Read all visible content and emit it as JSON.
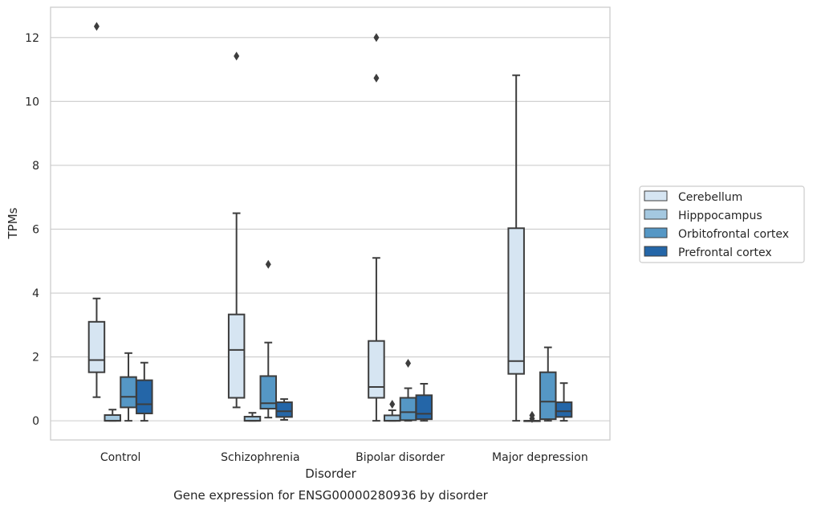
{
  "chart_data": {
    "type": "box",
    "title": "Gene expression for ENSG00000280936 by disorder",
    "xlabel": "Disorder",
    "ylabel": "TPMs",
    "ylim": [
      -0.6,
      12.95
    ],
    "yticks": [
      0,
      2,
      4,
      6,
      8,
      10,
      12
    ],
    "grid": "horizontal",
    "legend_position": "right",
    "categories": [
      "Control",
      "Schizophrenia",
      "Bipolar disorder",
      "Major depression"
    ],
    "series": [
      {
        "name": "Cerebellum",
        "color": "#d6e5f2",
        "boxes": [
          {
            "whisker_low": 0.74,
            "q1": 1.52,
            "median": 1.9,
            "q3": 3.1,
            "whisker_high": 3.83,
            "outliers": [
              12.35
            ]
          },
          {
            "whisker_low": 0.42,
            "q1": 0.72,
            "median": 2.22,
            "q3": 3.33,
            "whisker_high": 6.5,
            "outliers": [
              11.42
            ]
          },
          {
            "whisker_low": 0.0,
            "q1": 0.72,
            "median": 1.06,
            "q3": 2.5,
            "whisker_high": 5.1,
            "outliers": [
              12.0,
              10.73
            ]
          },
          {
            "whisker_low": 0.0,
            "q1": 1.47,
            "median": 1.87,
            "q3": 6.03,
            "whisker_high": 10.82,
            "outliers": []
          }
        ]
      },
      {
        "name": "Hipppocampus",
        "color": "#a4c8e0",
        "boxes": [
          {
            "whisker_low": 0.0,
            "q1": 0.0,
            "median": 0.0,
            "q3": 0.18,
            "whisker_high": 0.35,
            "outliers": []
          },
          {
            "whisker_low": 0.0,
            "q1": 0.0,
            "median": 0.0,
            "q3": 0.13,
            "whisker_high": 0.25,
            "outliers": []
          },
          {
            "whisker_low": 0.0,
            "q1": 0.0,
            "median": 0.0,
            "q3": 0.17,
            "whisker_high": 0.33,
            "outliers": [
              0.52
            ]
          },
          {
            "whisker_low": 0.0,
            "q1": 0.0,
            "median": 0.0,
            "q3": 0.0,
            "whisker_high": 0.0,
            "outliers": [
              0.17,
              0.07
            ]
          }
        ]
      },
      {
        "name": "Orbitofrontal cortex",
        "color": "#5597c5",
        "boxes": [
          {
            "whisker_low": 0.0,
            "q1": 0.42,
            "median": 0.75,
            "q3": 1.37,
            "whisker_high": 2.12,
            "outliers": []
          },
          {
            "whisker_low": 0.1,
            "q1": 0.38,
            "median": 0.55,
            "q3": 1.4,
            "whisker_high": 2.45,
            "outliers": [
              4.9
            ]
          },
          {
            "whisker_low": 0.0,
            "q1": 0.02,
            "median": 0.27,
            "q3": 0.72,
            "whisker_high": 1.02,
            "outliers": [
              1.8
            ]
          },
          {
            "whisker_low": 0.0,
            "q1": 0.05,
            "median": 0.6,
            "q3": 1.52,
            "whisker_high": 2.3,
            "outliers": []
          }
        ]
      },
      {
        "name": "Prefrontal cortex",
        "color": "#2466a8",
        "boxes": [
          {
            "whisker_low": 0.0,
            "q1": 0.23,
            "median": 0.52,
            "q3": 1.27,
            "whisker_high": 1.82,
            "outliers": []
          },
          {
            "whisker_low": 0.03,
            "q1": 0.12,
            "median": 0.3,
            "q3": 0.58,
            "whisker_high": 0.68,
            "outliers": []
          },
          {
            "whisker_low": 0.0,
            "q1": 0.05,
            "median": 0.22,
            "q3": 0.8,
            "whisker_high": 1.16,
            "outliers": []
          },
          {
            "whisker_low": 0.0,
            "q1": 0.12,
            "median": 0.3,
            "q3": 0.58,
            "whisker_high": 1.18,
            "outliers": []
          }
        ]
      }
    ]
  }
}
